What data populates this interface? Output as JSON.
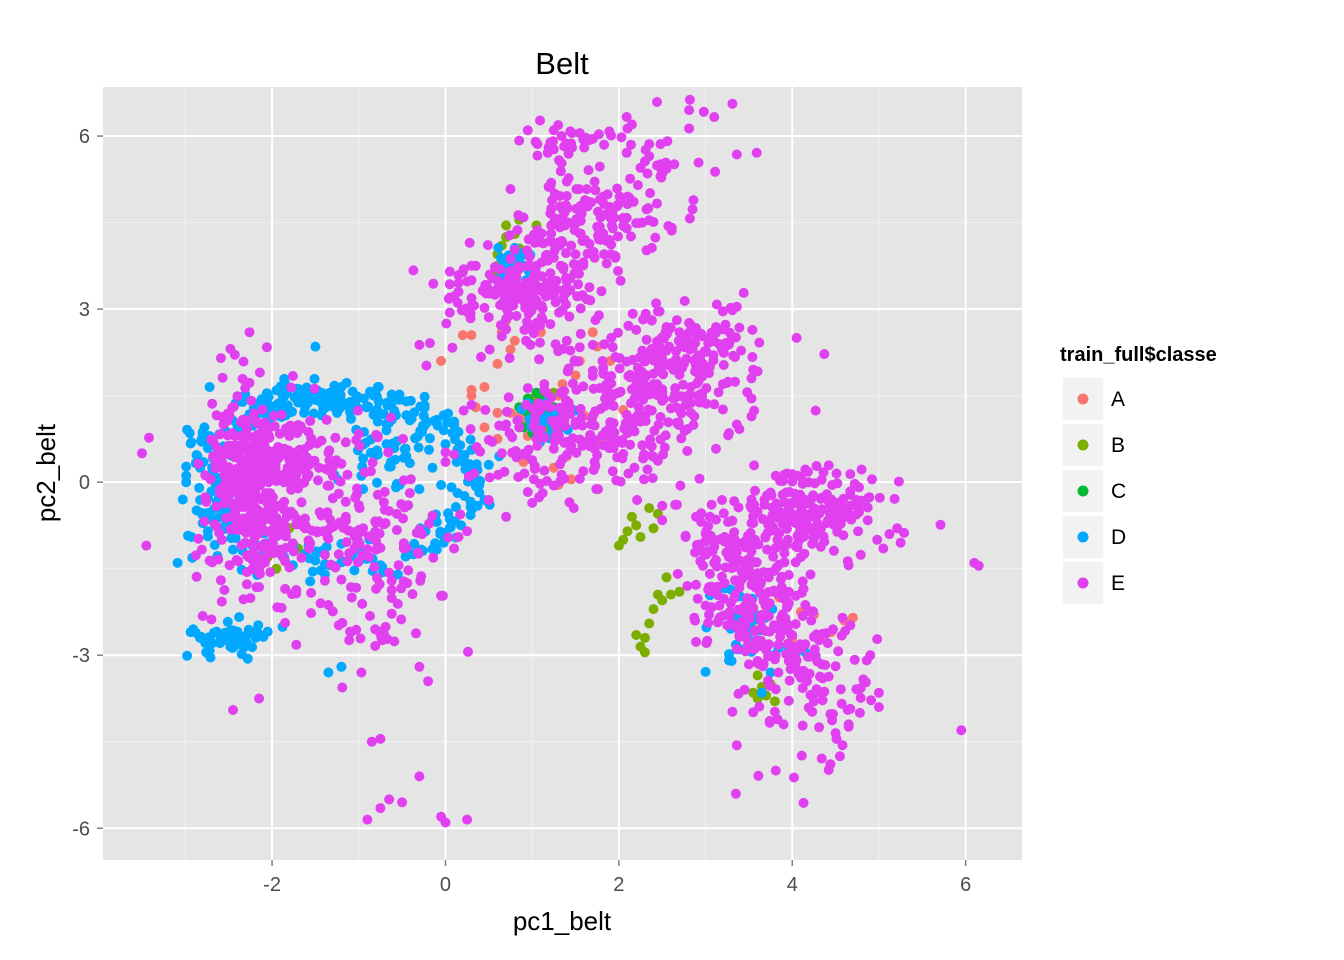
{
  "chart_data": {
    "type": "scatter",
    "title": "Belt",
    "xlabel": "pc1_belt",
    "ylabel": "pc2_belt",
    "xlim": [
      -3.95,
      6.65
    ],
    "ylim": [
      -6.55,
      6.85
    ],
    "xticks": [
      -2,
      0,
      2,
      4,
      6
    ],
    "xtick_labels": [
      "-2",
      "0",
      "2",
      "4",
      "6"
    ],
    "yticks": [
      -6,
      -3,
      0,
      3,
      6
    ],
    "ytick_labels": [
      "-6",
      "-3",
      "0",
      "3",
      "6"
    ],
    "grid": true,
    "legend": {
      "title": "train_full$classe",
      "position": "right"
    },
    "series": [
      {
        "name": "A",
        "color": "#F8766D",
        "points": [
          [
            0.2,
            2.55
          ],
          [
            0.3,
            2.55
          ],
          [
            -0.05,
            2.1
          ],
          [
            0.3,
            1.5
          ],
          [
            0.35,
            1.3
          ],
          [
            0.45,
            1.65
          ],
          [
            0.45,
            0.95
          ],
          [
            0.6,
            1.2
          ],
          [
            0.6,
            2.05
          ],
          [
            0.65,
            2.6
          ],
          [
            0.7,
            2.8
          ],
          [
            0.75,
            1.2
          ],
          [
            0.8,
            2.45
          ],
          [
            0.85,
            1.15
          ],
          [
            0.9,
            1.05
          ],
          [
            0.95,
            0.8
          ],
          [
            1.0,
            1.45
          ],
          [
            1.05,
            0.95
          ],
          [
            1.1,
            2.6
          ],
          [
            1.15,
            1.25
          ],
          [
            1.3,
            1.5
          ],
          [
            1.4,
            0.45
          ],
          [
            1.5,
            1.85
          ],
          [
            1.55,
            2.1
          ],
          [
            1.6,
            1.15
          ],
          [
            1.7,
            2.6
          ],
          [
            1.75,
            2.35
          ],
          [
            1.8,
            0.7
          ],
          [
            1.9,
            2.1
          ],
          [
            2.05,
            1.25
          ],
          [
            1.25,
            0.25
          ],
          [
            1.3,
            -0.05
          ],
          [
            1.45,
            0.05
          ],
          [
            3.75,
            -1.9
          ],
          [
            3.85,
            -2.0
          ],
          [
            3.95,
            -2.15
          ],
          [
            4.0,
            -2.7
          ],
          [
            4.1,
            -2.25
          ],
          [
            4.25,
            -2.3
          ],
          [
            4.45,
            -2.6
          ],
          [
            4.6,
            -2.4
          ],
          [
            4.7,
            -2.35
          ],
          [
            3.65,
            -2.3
          ],
          [
            3.55,
            -1.7
          ],
          [
            4.35,
            -2.7
          ],
          [
            0.3,
            1.6
          ],
          [
            0.9,
            0.35
          ],
          [
            1.35,
            1.7
          ],
          [
            0.6,
            0.75
          ],
          [
            0.75,
            2.3
          ]
        ]
      },
      {
        "name": "B",
        "color": "#7CAE00",
        "points": [
          [
            0.55,
            3.6
          ],
          [
            0.6,
            3.75
          ],
          [
            0.6,
            3.95
          ],
          [
            0.65,
            4.1
          ],
          [
            0.7,
            4.25
          ],
          [
            0.7,
            4.45
          ],
          [
            0.75,
            3.9
          ],
          [
            0.8,
            4.3
          ],
          [
            0.8,
            3.55
          ],
          [
            0.85,
            4.05
          ],
          [
            0.9,
            3.35
          ],
          [
            0.95,
            3.75
          ],
          [
            1.0,
            4.2
          ],
          [
            1.05,
            4.45
          ],
          [
            0.65,
            3.45
          ],
          [
            0.85,
            4.55
          ],
          [
            1.05,
            1.45
          ],
          [
            1.1,
            1.2
          ],
          [
            1.15,
            0.95
          ],
          [
            1.2,
            1.35
          ],
          [
            1.25,
            1.55
          ],
          [
            1.3,
            1.05
          ],
          [
            2.0,
            -1.1
          ],
          [
            2.05,
            -1.0
          ],
          [
            2.1,
            -0.85
          ],
          [
            2.15,
            -0.6
          ],
          [
            2.2,
            -0.75
          ],
          [
            2.25,
            -0.95
          ],
          [
            2.35,
            -0.45
          ],
          [
            2.4,
            -0.8
          ],
          [
            2.45,
            -0.55
          ],
          [
            2.2,
            -2.65
          ],
          [
            2.25,
            -2.85
          ],
          [
            2.3,
            -2.7
          ],
          [
            2.35,
            -2.45
          ],
          [
            2.4,
            -2.2
          ],
          [
            2.45,
            -1.95
          ],
          [
            2.5,
            -2.05
          ],
          [
            2.55,
            -1.65
          ],
          [
            2.3,
            -2.95
          ],
          [
            2.6,
            -1.95
          ],
          [
            2.7,
            -1.9
          ],
          [
            3.55,
            -3.65
          ],
          [
            3.6,
            -3.75
          ],
          [
            3.65,
            -3.55
          ],
          [
            3.7,
            -3.7
          ],
          [
            3.75,
            -3.5
          ],
          [
            3.8,
            -3.8
          ],
          [
            3.6,
            -3.35
          ],
          [
            3.55,
            -2.4
          ],
          [
            3.5,
            -2.05
          ],
          [
            -2.05,
            -1.3
          ],
          [
            -1.95,
            -1.5
          ],
          [
            -1.8,
            -0.8
          ],
          [
            -1.7,
            -1.15
          ]
        ]
      },
      {
        "name": "C",
        "color": "#00BA38",
        "points": [
          [
            0.95,
            1.2
          ],
          [
            1.0,
            1.35
          ],
          [
            1.05,
            1.1
          ],
          [
            1.1,
            1.4
          ],
          [
            1.15,
            1.5
          ],
          [
            1.2,
            1.2
          ],
          [
            0.9,
            0.95
          ],
          [
            1.0,
            0.85
          ],
          [
            1.25,
            1.3
          ],
          [
            1.3,
            0.9
          ],
          [
            1.35,
            1.1
          ],
          [
            1.15,
            1.55
          ],
          [
            0.85,
            1.3
          ],
          [
            1.05,
            1.55
          ],
          [
            1.2,
            0.8
          ],
          [
            0.95,
            1.45
          ]
        ]
      },
      {
        "name": "D",
        "color": "#00A9FF",
        "points": []
      },
      {
        "name": "E",
        "color": "#E040F0",
        "points": []
      }
    ]
  }
}
